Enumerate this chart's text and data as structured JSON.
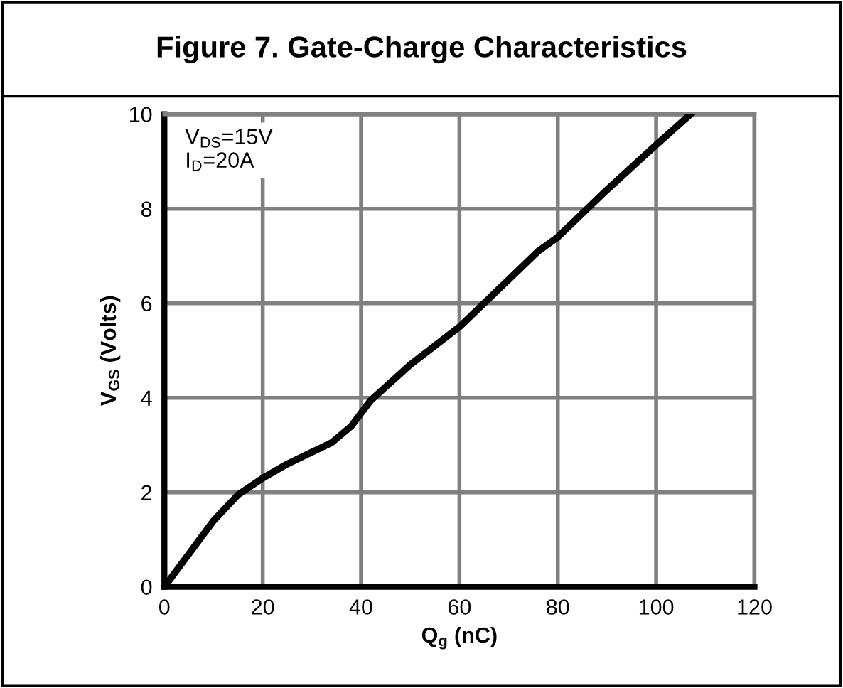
{
  "chart_data": {
    "type": "line",
    "title": "Figure 7. Gate-Charge Characteristics",
    "xlabel": "Q$_{g}$ (nC)",
    "ylabel": "V$_{GS}$ (Volts)",
    "annotations": [
      "V$_{DS}$=15V\nI$_{D}$=20A"
    ],
    "x": [
      0,
      5,
      10,
      15,
      20,
      25,
      30,
      34,
      38,
      42,
      50,
      60,
      70,
      76,
      80,
      90,
      100,
      107
    ],
    "series": [
      {
        "color": "#000000",
        "values": [
          0,
          0.7,
          1.4,
          1.95,
          2.3,
          2.6,
          2.85,
          3.05,
          3.4,
          3.95,
          4.7,
          5.5,
          6.5,
          7.1,
          7.4,
          8.4,
          9.35,
          10
        ]
      }
    ],
    "xlim": [
      0,
      120
    ],
    "xticks": [
      0,
      20,
      40,
      60,
      80,
      100,
      120
    ],
    "ylim": [
      0,
      10
    ],
    "yticks": [
      0,
      2,
      4,
      6,
      8,
      10
    ],
    "grid": true,
    "line_style": "solid",
    "marker": "none"
  }
}
